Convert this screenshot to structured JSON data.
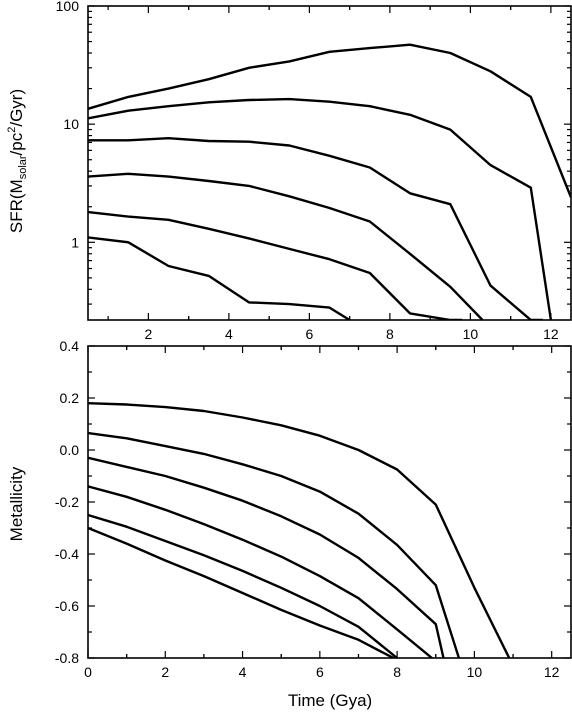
{
  "chart_data": [
    {
      "type": "line",
      "ylabel": {
        "main": "SFR(M",
        "sub1": "solar",
        "mid": "/pc",
        "sup": "2",
        "end": "/Gyr)"
      },
      "yscale": "log",
      "xlim": [
        0.5,
        12.5
      ],
      "ylim": [
        0.22,
        100
      ],
      "xticks": [
        2,
        4,
        6,
        8,
        10,
        12
      ],
      "yticks": [
        1,
        10,
        100
      ],
      "ytick_labels": [
        "1",
        "10",
        "100"
      ],
      "series": [
        {
          "x": [
            0.5,
            1.5,
            2.5,
            3.5,
            4.5,
            5.5,
            6.5,
            7.5,
            8.5,
            9.5,
            10.5,
            11.5,
            12.5
          ],
          "y": [
            13.5,
            17,
            20,
            24,
            30,
            34,
            41,
            44,
            47,
            40,
            28,
            17,
            2.4
          ]
        },
        {
          "x": [
            0.5,
            1.5,
            2.5,
            3.5,
            4.5,
            5.5,
            6.5,
            7.5,
            8.5,
            9.5,
            10.5,
            11.5,
            12.0
          ],
          "y": [
            11.2,
            13,
            14.2,
            15.3,
            16,
            16.3,
            15.5,
            14.2,
            12,
            9,
            4.5,
            2.9,
            0.22
          ]
        },
        {
          "x": [
            0.5,
            1.5,
            2.5,
            3.5,
            4.5,
            5.5,
            6.5,
            7.5,
            8.5,
            9.5,
            10.5,
            11.5,
            11.8
          ],
          "y": [
            7.3,
            7.3,
            7.6,
            7.2,
            7.1,
            6.6,
            5.4,
            4.3,
            2.6,
            2.1,
            0.43,
            0.22,
            0.22
          ]
        },
        {
          "x": [
            0.5,
            1.5,
            2.5,
            3.5,
            4.5,
            5.5,
            6.5,
            7.5,
            8.5,
            9.5,
            10.3
          ],
          "y": [
            3.6,
            3.8,
            3.6,
            3.3,
            3.0,
            2.45,
            1.95,
            1.5,
            0.8,
            0.42,
            0.22
          ]
        },
        {
          "x": [
            0.5,
            1.5,
            2.5,
            3.5,
            4.5,
            5.5,
            6.5,
            7.5,
            8.5,
            9.5,
            9.8
          ],
          "y": [
            1.8,
            1.65,
            1.55,
            1.3,
            1.08,
            0.88,
            0.72,
            0.55,
            0.25,
            0.22,
            0.22
          ]
        },
        {
          "x": [
            0.5,
            1.5,
            2.5,
            3.5,
            4.5,
            5.5,
            6.5,
            7.0
          ],
          "y": [
            1.1,
            1.0,
            0.63,
            0.52,
            0.31,
            0.3,
            0.28,
            0.22
          ]
        }
      ]
    },
    {
      "type": "line",
      "xlabel": "Time (Gya)",
      "ylabel": "Metallicity",
      "xlim": [
        0,
        12.5
      ],
      "ylim": [
        -0.8,
        0.4
      ],
      "xticks": [
        0,
        2,
        4,
        6,
        8,
        10,
        12
      ],
      "yticks": [
        -0.8,
        -0.6,
        -0.4,
        -0.2,
        0.0,
        0.2,
        0.4
      ],
      "ytick_labels": [
        "-0.8",
        "-0.6",
        "-0.4",
        "-0.2",
        "0.0",
        "0.2",
        "0.4"
      ],
      "series": [
        {
          "x": [
            0,
            1,
            2,
            3,
            4,
            5,
            6,
            7,
            8,
            9,
            10,
            10.9
          ],
          "y": [
            0.18,
            0.175,
            0.165,
            0.15,
            0.125,
            0.095,
            0.055,
            0.0,
            -0.075,
            -0.21,
            -0.53,
            -0.8
          ]
        },
        {
          "x": [
            0,
            1,
            2,
            3,
            4,
            5,
            6,
            7,
            8,
            9,
            9.6
          ],
          "y": [
            0.065,
            0.045,
            0.015,
            -0.015,
            -0.055,
            -0.1,
            -0.16,
            -0.245,
            -0.365,
            -0.52,
            -0.8
          ]
        },
        {
          "x": [
            0,
            1,
            2,
            3,
            4,
            5,
            6,
            7,
            8,
            9,
            9.2
          ],
          "y": [
            -0.03,
            -0.065,
            -0.1,
            -0.145,
            -0.195,
            -0.255,
            -0.325,
            -0.415,
            -0.535,
            -0.67,
            -0.8
          ]
        },
        {
          "x": [
            0,
            1,
            2,
            3,
            4,
            5,
            6,
            7,
            8,
            8.9
          ],
          "y": [
            -0.14,
            -0.18,
            -0.23,
            -0.285,
            -0.345,
            -0.41,
            -0.485,
            -0.57,
            -0.69,
            -0.8
          ]
        },
        {
          "x": [
            0,
            1,
            2,
            3,
            4,
            5,
            6,
            7,
            8
          ],
          "y": [
            -0.25,
            -0.295,
            -0.35,
            -0.405,
            -0.465,
            -0.53,
            -0.6,
            -0.68,
            -0.8
          ]
        },
        {
          "x": [
            0,
            1,
            2,
            3,
            4,
            5,
            6,
            7,
            7.9
          ],
          "y": [
            -0.3,
            -0.36,
            -0.425,
            -0.485,
            -0.55,
            -0.615,
            -0.675,
            -0.73,
            -0.8
          ]
        }
      ]
    }
  ]
}
